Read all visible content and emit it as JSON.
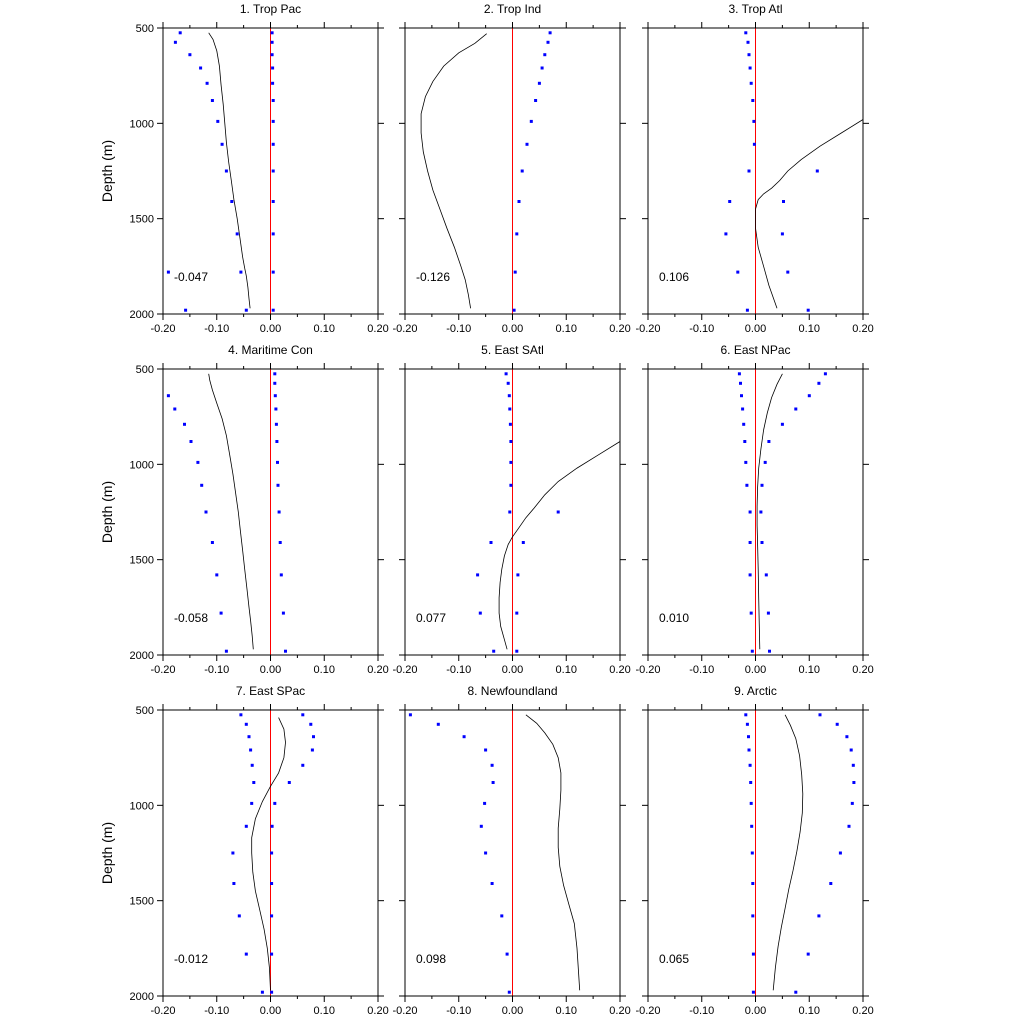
{
  "chart_data": {
    "type": "scatter",
    "ylabel": "Depth (m)",
    "xlim": [
      -0.2,
      0.2
    ],
    "ylim": [
      2000,
      500
    ],
    "y_inverted": true,
    "xticks": [
      "-0.20",
      "-0.10",
      "0.00",
      "0.10",
      "0.20"
    ],
    "yticks": [
      "500",
      "1000",
      "1500",
      "2000"
    ],
    "zero_line_color": "#ff0000",
    "line_color": "#000000",
    "point_color": "#0000ff",
    "depths": [
      525,
      575,
      640,
      710,
      790,
      880,
      990,
      1110,
      1250,
      1410,
      1580,
      1780,
      1980
    ],
    "panels": [
      {
        "title": "1. Trop Pac",
        "stat": "-0.047",
        "line": {
          "x": [
            -0.115,
            -0.107,
            -0.1,
            -0.095,
            -0.092,
            -0.088,
            -0.085,
            -0.082,
            -0.078,
            -0.073,
            -0.068,
            -0.062,
            -0.057,
            -0.052,
            -0.048,
            -0.045,
            -0.042,
            -0.04,
            -0.038
          ],
          "y": [
            525,
            560,
            620,
            700,
            800,
            900,
            1000,
            1100,
            1200,
            1300,
            1400,
            1500,
            1600,
            1700,
            1760,
            1800,
            1860,
            1920,
            1970
          ]
        },
        "points": [
          {
            "x": [
              0.003,
              0.003,
              0.003,
              0.004,
              0.004,
              0.005,
              0.005,
              0.005,
              0.005,
              0.005,
              0.005,
              0.005,
              0.005
            ]
          },
          {
            "x": [
              null,
              -0.177,
              -0.15,
              -0.13,
              -0.118,
              -0.108,
              -0.098,
              -0.09,
              -0.082,
              -0.072,
              -0.062,
              -0.055,
              -0.045
            ]
          },
          {
            "x": [
              -0.168,
              null,
              null,
              null,
              null,
              null,
              null,
              null,
              null,
              null,
              null,
              -0.19,
              -0.158
            ]
          }
        ]
      },
      {
        "title": "2. Trop Ind",
        "stat": "-0.126",
        "line": {
          "x": [
            -0.048,
            -0.07,
            -0.1,
            -0.128,
            -0.148,
            -0.162,
            -0.17,
            -0.17,
            -0.166,
            -0.158,
            -0.148,
            -0.135,
            -0.122,
            -0.108,
            -0.096,
            -0.088,
            -0.082,
            -0.078
          ],
          "y": [
            530,
            580,
            630,
            700,
            780,
            860,
            950,
            1050,
            1150,
            1250,
            1350,
            1450,
            1550,
            1650,
            1750,
            1820,
            1900,
            1970
          ]
        },
        "points": [
          {
            "x": [
              0.07,
              0.066,
              0.06,
              0.055,
              0.05,
              0.043,
              0.035,
              0.027,
              0.018,
              0.012,
              0.008,
              0.005,
              0.003
            ]
          }
        ]
      },
      {
        "title": "3. Trop Atl",
        "stat": "0.106",
        "line": {
          "x": [
            0.2,
            0.16,
            0.12,
            0.085,
            0.06,
            0.045,
            0.03,
            0.015,
            0.005,
            0.0,
            0.0,
            0.0,
            0.005,
            0.015,
            0.025,
            0.04
          ],
          "y": [
            980,
            1050,
            1120,
            1190,
            1250,
            1300,
            1340,
            1370,
            1400,
            1450,
            1500,
            1550,
            1650,
            1750,
            1850,
            1970
          ]
        },
        "points": [
          {
            "x": [
              -0.018,
              -0.014,
              -0.012,
              -0.01,
              -0.008,
              -0.005,
              -0.003,
              -0.002,
              -0.012,
              -0.048,
              -0.055,
              -0.033,
              -0.015
            ]
          },
          {
            "x": [
              null,
              null,
              null,
              null,
              null,
              null,
              null,
              null,
              0.115,
              0.052,
              0.05,
              0.06,
              0.098
            ]
          }
        ]
      },
      {
        "title": "4. Maritime Con",
        "stat": "-0.058",
        "line": {
          "x": [
            -0.115,
            -0.113,
            -0.108,
            -0.1,
            -0.09,
            -0.082,
            -0.076,
            -0.07,
            -0.065,
            -0.06,
            -0.056,
            -0.052,
            -0.048,
            -0.044,
            -0.04,
            -0.037,
            -0.034,
            -0.032
          ],
          "y": [
            525,
            560,
            610,
            680,
            760,
            850,
            950,
            1050,
            1150,
            1250,
            1350,
            1450,
            1550,
            1650,
            1750,
            1820,
            1900,
            1970
          ]
        },
        "points": [
          {
            "x": [
              0.008,
              0.008,
              0.009,
              0.01,
              0.011,
              0.012,
              0.013,
              0.014,
              0.016,
              0.018,
              0.02,
              0.024,
              0.028
            ]
          },
          {
            "x": [
              null,
              null,
              -0.19,
              -0.178,
              -0.16,
              -0.148,
              -0.135,
              -0.128,
              -0.12,
              -0.108,
              -0.1,
              -0.092,
              -0.082
            ]
          }
        ]
      },
      {
        "title": "5. East SAtl",
        "stat": "0.077",
        "line": {
          "x": [
            0.2,
            0.16,
            0.12,
            0.085,
            0.06,
            0.04,
            0.025,
            0.01,
            0.0,
            -0.008,
            -0.015,
            -0.02,
            -0.023,
            -0.025,
            -0.025,
            -0.022,
            -0.016,
            -0.01
          ],
          "y": [
            880,
            950,
            1020,
            1090,
            1160,
            1230,
            1280,
            1340,
            1380,
            1420,
            1480,
            1550,
            1620,
            1700,
            1780,
            1850,
            1910,
            1970
          ]
        },
        "points": [
          {
            "x": [
              -0.012,
              -0.008,
              -0.006,
              -0.005,
              -0.004,
              -0.003,
              -0.003,
              -0.003,
              -0.005,
              -0.04,
              -0.065,
              -0.06,
              -0.035
            ]
          },
          {
            "x": [
              null,
              null,
              null,
              null,
              null,
              null,
              null,
              null,
              0.085,
              0.02,
              0.01,
              0.008,
              0.008
            ]
          }
        ]
      },
      {
        "title": "6. East NPac",
        "stat": "0.010",
        "line": {
          "x": [
            0.05,
            0.04,
            0.03,
            0.022,
            0.015,
            0.01,
            0.006,
            0.004,
            0.003,
            0.003,
            0.004,
            0.005,
            0.006,
            0.007,
            0.008
          ],
          "y": [
            525,
            580,
            650,
            730,
            820,
            920,
            1020,
            1120,
            1220,
            1320,
            1420,
            1550,
            1700,
            1850,
            1970
          ]
        },
        "points": [
          {
            "x": [
              -0.03,
              -0.028,
              -0.026,
              -0.024,
              -0.022,
              -0.02,
              -0.018,
              -0.016,
              -0.01,
              -0.01,
              -0.01,
              -0.008,
              -0.006
            ]
          },
          {
            "x": [
              0.13,
              0.118,
              0.1,
              0.075,
              0.05,
              0.025,
              0.018,
              0.012,
              0.01,
              0.012,
              0.02,
              0.024,
              0.026
            ]
          }
        ]
      },
      {
        "title": "7. East SPac",
        "stat": "-0.012",
        "line": {
          "x": [
            0.015,
            0.025,
            0.028,
            0.025,
            0.015,
            0.0,
            -0.015,
            -0.028,
            -0.035,
            -0.035,
            -0.033,
            -0.028,
            -0.02,
            -0.012,
            -0.006,
            -0.002,
            0.0
          ],
          "y": [
            540,
            600,
            670,
            750,
            830,
            900,
            980,
            1070,
            1170,
            1250,
            1350,
            1450,
            1550,
            1650,
            1750,
            1850,
            1970
          ]
        },
        "points": [
          {
            "x": [
              -0.055,
              -0.045,
              -0.04,
              -0.037,
              -0.034,
              -0.031,
              -0.035,
              -0.045,
              -0.07,
              -0.068,
              -0.058,
              -0.045,
              -0.015
            ]
          },
          {
            "x": [
              0.06,
              0.075,
              0.08,
              0.078,
              0.06,
              0.035,
              0.008,
              0.003,
              0.002,
              0.002,
              0.002,
              0.002,
              0.002
            ]
          }
        ]
      },
      {
        "title": "8. Newfoundland",
        "stat": "0.098",
        "line": {
          "x": [
            0.025,
            0.045,
            0.06,
            0.075,
            0.085,
            0.09,
            0.09,
            0.088,
            0.085,
            0.085,
            0.088,
            0.095,
            0.105,
            0.115,
            0.12,
            0.125
          ],
          "y": [
            525,
            570,
            620,
            680,
            750,
            830,
            920,
            1020,
            1120,
            1220,
            1320,
            1420,
            1520,
            1620,
            1750,
            1970
          ]
        },
        "points": [
          {
            "x": [
              -0.19,
              -0.138,
              -0.09,
              -0.05,
              -0.038,
              -0.036,
              -0.052,
              -0.058,
              -0.05,
              -0.038,
              -0.02,
              -0.01,
              -0.006
            ]
          }
        ]
      },
      {
        "title": "9. Arctic",
        "stat": "0.065",
        "line": {
          "x": [
            0.055,
            0.065,
            0.075,
            0.082,
            0.086,
            0.088,
            0.087,
            0.083,
            0.077,
            0.07,
            0.062,
            0.055,
            0.048,
            0.042,
            0.037,
            0.033
          ],
          "y": [
            525,
            580,
            650,
            740,
            840,
            940,
            1040,
            1140,
            1240,
            1340,
            1440,
            1540,
            1640,
            1740,
            1850,
            1970
          ]
        },
        "points": [
          {
            "x": [
              -0.018,
              -0.015,
              -0.013,
              -0.012,
              -0.01,
              -0.009,
              -0.008,
              -0.007,
              -0.006,
              -0.005,
              -0.005,
              -0.004,
              -0.004
            ]
          },
          {
            "x": [
              0.12,
              0.152,
              0.17,
              0.178,
              0.182,
              0.183,
              0.18,
              0.174,
              0.158,
              0.14,
              0.118,
              0.098,
              0.075
            ]
          }
        ]
      }
    ]
  }
}
